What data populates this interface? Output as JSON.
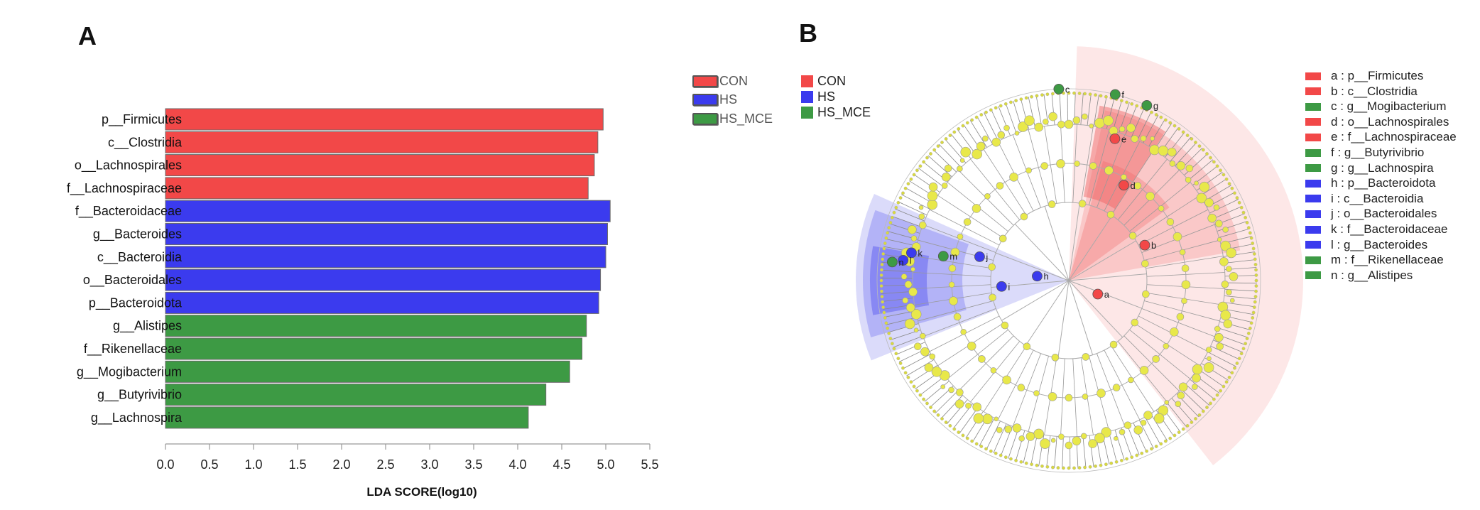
{
  "panels": {
    "a_label": "A",
    "b_label": "B"
  },
  "colors": {
    "CON": "#f24848",
    "HS": "#3b3bee",
    "HS_MCE": "#3d9a44",
    "node": "#e8e84a"
  },
  "chart_data": [
    {
      "type": "bar",
      "orientation": "horizontal",
      "title": "",
      "xlabel": "LDA SCORE(log10)",
      "ylabel": "",
      "xlim": [
        0,
        5.5
      ],
      "xticks": [
        "0.0",
        "0.5",
        "1.0",
        "1.5",
        "2.0",
        "2.5",
        "3.0",
        "3.5",
        "4.0",
        "4.5",
        "5.0",
        "5.5"
      ],
      "legend": [
        "CON",
        "HS",
        "HS_MCE"
      ],
      "bars": [
        {
          "label": "p__Firmicutes",
          "value": 4.97,
          "group": "CON"
        },
        {
          "label": "c__Clostridia",
          "value": 4.91,
          "group": "CON"
        },
        {
          "label": "o__Lachnospirales",
          "value": 4.87,
          "group": "CON"
        },
        {
          "label": "f__Lachnospiraceae",
          "value": 4.8,
          "group": "CON"
        },
        {
          "label": "f__Bacteroidaceae",
          "value": 5.05,
          "group": "HS"
        },
        {
          "label": "g__Bacteroides",
          "value": 5.02,
          "group": "HS"
        },
        {
          "label": "c__Bacteroidia",
          "value": 5.0,
          "group": "HS"
        },
        {
          "label": "o__Bacteroidales",
          "value": 4.94,
          "group": "HS"
        },
        {
          "label": "p__Bacteroidota",
          "value": 4.92,
          "group": "HS"
        },
        {
          "label": "g__Alistipes",
          "value": 4.78,
          "group": "HS_MCE"
        },
        {
          "label": "f__Rikenellaceae",
          "value": 4.73,
          "group": "HS_MCE"
        },
        {
          "label": "g__Mogibacterium",
          "value": 4.59,
          "group": "HS_MCE"
        },
        {
          "label": "g__Butyrivibrio",
          "value": 4.32,
          "group": "HS_MCE"
        },
        {
          "label": "g__Lachnospira",
          "value": 4.12,
          "group": "HS_MCE"
        }
      ]
    },
    {
      "type": "cladogram",
      "title": "",
      "legend": [
        "CON",
        "HS",
        "HS_MCE"
      ],
      "nodes": [
        {
          "letter": "a",
          "label": "p__Firmicutes",
          "group": "CON"
        },
        {
          "letter": "b",
          "label": "c__Clostridia",
          "group": "CON"
        },
        {
          "letter": "c",
          "label": "g__Mogibacterium",
          "group": "HS_MCE"
        },
        {
          "letter": "d",
          "label": "o__Lachnospirales",
          "group": "CON"
        },
        {
          "letter": "e",
          "label": "f__Lachnospiraceae",
          "group": "CON"
        },
        {
          "letter": "f",
          "label": "g__Butyrivibrio",
          "group": "HS_MCE"
        },
        {
          "letter": "g",
          "label": "g__Lachnospira",
          "group": "HS_MCE"
        },
        {
          "letter": "h",
          "label": "p__Bacteroidota",
          "group": "HS"
        },
        {
          "letter": "i",
          "label": "c__Bacteroidia",
          "group": "HS"
        },
        {
          "letter": "j",
          "label": "o__Bacteroidales",
          "group": "HS"
        },
        {
          "letter": "k",
          "label": "f__Bacteroidaceae",
          "group": "HS"
        },
        {
          "letter": "l",
          "label": "g__Bacteroides",
          "group": "HS"
        },
        {
          "letter": "m",
          "label": "f__Rikenellaceae",
          "group": "HS_MCE"
        },
        {
          "letter": "n",
          "label": "g__Alistipes",
          "group": "HS_MCE"
        }
      ]
    }
  ]
}
